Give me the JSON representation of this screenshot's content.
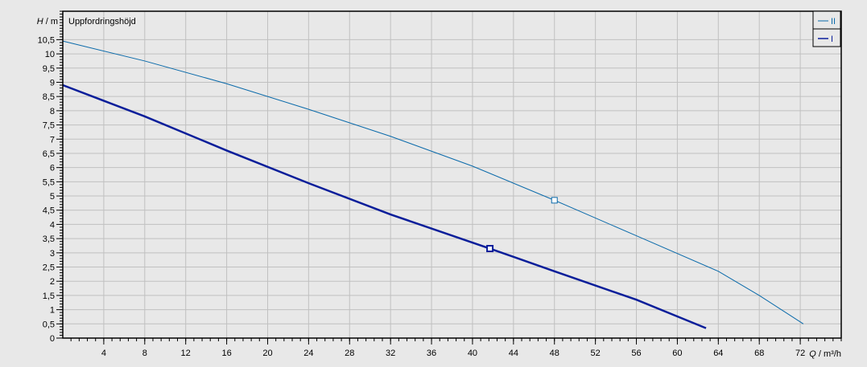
{
  "chart_data": {
    "type": "line",
    "title": "Uppfordringshöjd",
    "ylabel_symbol": "H",
    "ylabel_unit": " / m",
    "xlabel_symbol": "Q",
    "xlabel_unit": " / m³/h",
    "xlim": [
      0,
      76
    ],
    "ylim": [
      0,
      11.5
    ],
    "xticks": [
      4,
      8,
      12,
      16,
      20,
      24,
      28,
      32,
      36,
      40,
      44,
      48,
      52,
      56,
      60,
      64,
      68,
      72
    ],
    "yticks": [
      "0",
      "0,5",
      "1",
      "1,5",
      "2",
      "2,5",
      "3",
      "3,5",
      "4",
      "4,5",
      "5",
      "5,5",
      "6",
      "6,5",
      "7",
      "7,5",
      "8",
      "8,5",
      "9",
      "9,5",
      "10",
      "10,5"
    ],
    "grid": true,
    "legend_position": "top-right",
    "series": [
      {
        "name": "II",
        "color": "#0a6aaa",
        "x": [
          0,
          8,
          16,
          24,
          32,
          40,
          48,
          56,
          64,
          68,
          72.3
        ],
        "y": [
          10.45,
          9.75,
          8.95,
          8.05,
          7.1,
          6.05,
          4.85,
          3.6,
          2.35,
          1.5,
          0.5
        ],
        "marker": {
          "x": 48,
          "y": 4.85
        }
      },
      {
        "name": "I",
        "color": "#0a1e9a",
        "x": [
          0,
          8,
          16,
          24,
          32,
          41.7,
          48,
          56,
          62.8
        ],
        "y": [
          8.9,
          7.8,
          6.6,
          5.45,
          4.35,
          3.15,
          2.35,
          1.35,
          0.35
        ],
        "marker": {
          "x": 41.7,
          "y": 3.15
        }
      }
    ]
  }
}
